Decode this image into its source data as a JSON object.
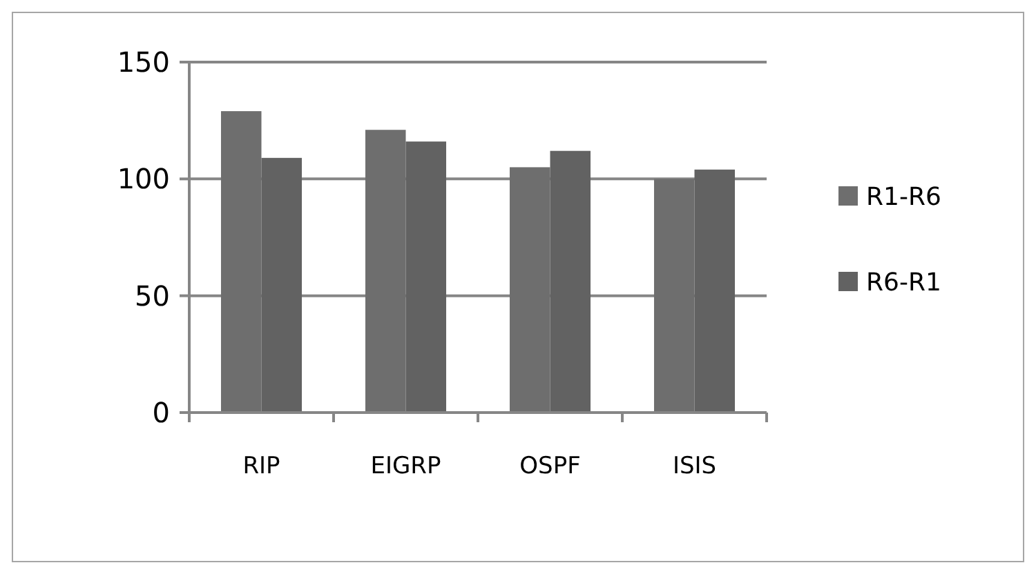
{
  "chart_data": {
    "type": "bar",
    "categories": [
      "RIP",
      "EIGRP",
      "OSPF",
      "ISIS"
    ],
    "series": [
      {
        "name": "R1-R6",
        "color": "#6e6e6e",
        "values": [
          129,
          121,
          105,
          100
        ]
      },
      {
        "name": "R6-R1",
        "color": "#626262",
        "values": [
          109,
          116,
          112,
          104
        ]
      }
    ],
    "ylim": [
      0,
      150
    ],
    "yticks": [
      0,
      50,
      100,
      150
    ],
    "grid": "y",
    "legend": "right"
  }
}
